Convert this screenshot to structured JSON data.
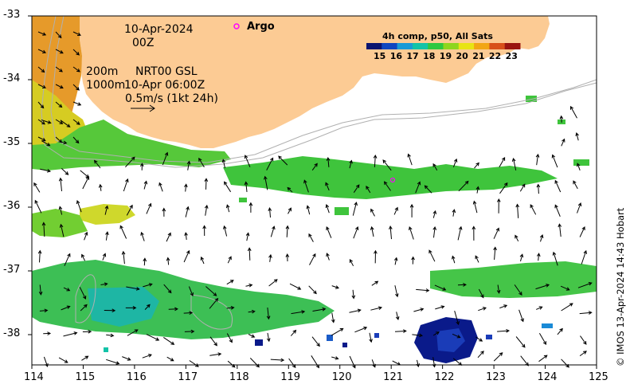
{
  "annotations": {
    "date": "10-Apr-2024",
    "time": "00Z",
    "depth1": "200m",
    "depth2": "1000m",
    "nrt_line1": "NRT00 GSL",
    "nrt_line2": "10-Apr 06:00Z",
    "scale_label": "0.5m/s (1kt 24h)"
  },
  "argo_label": "Argo",
  "colorbar": {
    "title": "4h comp, p50, All Sats",
    "ticks": [
      "15",
      "16",
      "17",
      "18",
      "19",
      "20",
      "21",
      "22",
      "23"
    ],
    "colors": [
      "#0a1470",
      "#1046c0",
      "#1a9ad6",
      "#12c3a8",
      "#2ec840",
      "#8ed61e",
      "#e8e414",
      "#f2a614",
      "#d8501a",
      "#9a1410"
    ]
  },
  "axes": {
    "x_ticks": [
      "114",
      "115",
      "116",
      "117",
      "118",
      "119",
      "120",
      "121",
      "122",
      "123",
      "124",
      "125"
    ],
    "y_ticks": [
      "-33",
      "-34",
      "-35",
      "-36",
      "-37",
      "-38"
    ]
  },
  "credit": "© IMOS 13-Apr-2024 14:43 Hobart",
  "colors": {
    "land": "#fccb94",
    "argo": "#ff00ff"
  }
}
